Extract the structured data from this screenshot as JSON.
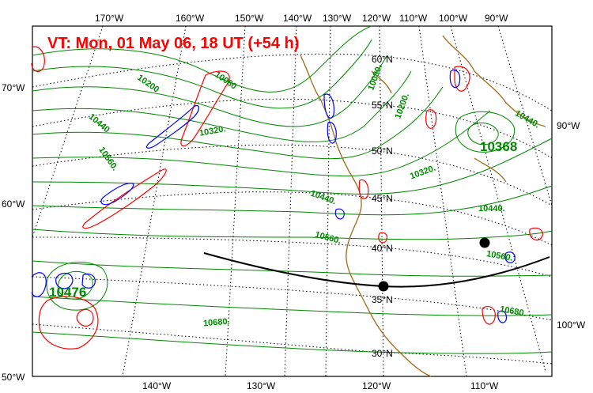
{
  "title": "VT:  Mon, 01 May 06, 18 UT (+54 h)",
  "colors": {
    "height_contours": "#008800",
    "positive_vorticity": "#ff0000",
    "negative_vorticity": "#0000ff",
    "coastline": "#a06a1a",
    "graticule": "#000000",
    "track": "#000000"
  },
  "top_lon_labels": [
    "170°W",
    "160°W",
    "150°W",
    "140°W",
    "130°W",
    "120°W",
    "110°W",
    "100°W",
    "90°W"
  ],
  "bottom_lon_labels": [
    "140°W",
    "130°W",
    "120°W",
    "110°W"
  ],
  "left_labels": [
    "70°W",
    "60°W",
    "50°W"
  ],
  "right_labels": [
    "90°W",
    "100°W"
  ],
  "lat_labels": [
    "60°N",
    "55°N",
    "50°N",
    "45°N",
    "40°N",
    "35°N",
    "30°N"
  ],
  "contour_labels": [
    "10080",
    "10080.",
    "10200",
    "10200.",
    "10320.",
    "10320.",
    "10440",
    "10440.",
    "10440.",
    "10440.",
    "10560.",
    "10560.",
    "10560.",
    "10680.",
    "10680."
  ],
  "lows_highs": {
    "high_west": "10476",
    "high_east": "10368"
  },
  "track_points": 2
}
